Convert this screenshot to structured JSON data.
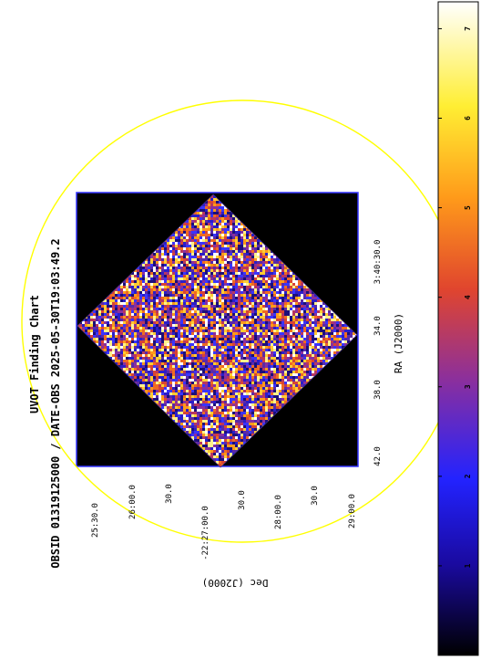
{
  "chart_data": {
    "type": "heatmap",
    "title": "UVOT Finding Chart",
    "subtitle": "OBSID 01319125000 / DATE-OBS 2025-05-30T19:03:49.2",
    "xlabel": "RA (J2000)",
    "ylabel": "Dec (J2000)",
    "ra_ticks": [
      "42.0",
      "38.0",
      "34.0",
      "3:40:30.0"
    ],
    "dec_ticks": [
      "25:30.0",
      "26:00.0",
      "30.0",
      "-22:27:00.0",
      "30.0",
      "28:00.0",
      "30.0",
      "29:00.0"
    ],
    "colorbar": {
      "ticks": [
        "0",
        "1",
        "2",
        "3",
        "4",
        "5",
        "6",
        "7"
      ],
      "min": 0,
      "max": 7.3
    },
    "grid": false,
    "colors": {
      "circle": "#ffff00",
      "frame": "#3333ff",
      "background": "#000000"
    }
  }
}
